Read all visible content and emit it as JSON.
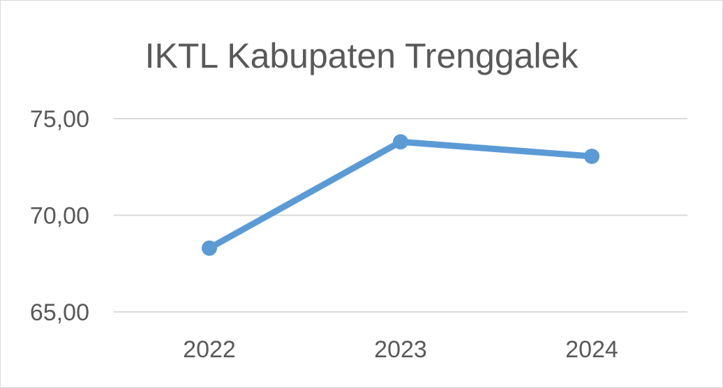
{
  "chart_data": {
    "type": "line",
    "title": "IKTL Kabupaten Trenggalek",
    "xlabel": "",
    "ylabel": "",
    "categories": [
      "2022",
      "2023",
      "2024"
    ],
    "series": [
      {
        "values": [
          68.3,
          73.8,
          73.05
        ],
        "color": "#5b9bd5"
      }
    ],
    "ylim": [
      65,
      75
    ],
    "yticks": [
      65,
      70,
      75
    ],
    "ytick_labels": [
      "65,00",
      "70,00",
      "75,00"
    ],
    "grid": true,
    "legend": "none"
  }
}
